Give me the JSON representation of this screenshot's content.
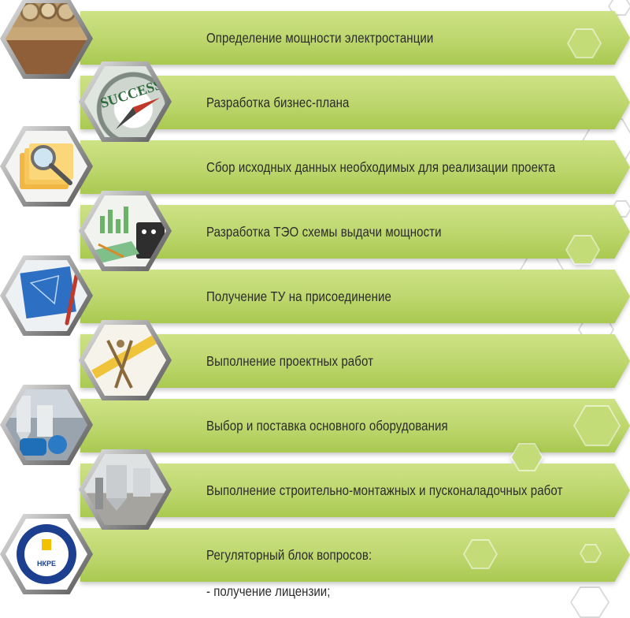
{
  "steps": [
    {
      "label": "Определение мощности электростанции",
      "image": "wood-pellets-image"
    },
    {
      "label": "Разработка бизнес-плана",
      "image": "success-compass-image"
    },
    {
      "label": "Сбор исходных данных необходимых для реализации проекта",
      "image": "folders-magnifier-image"
    },
    {
      "label": "Разработка ТЭО схемы выдачи мощности",
      "image": "charts-calculator-image"
    },
    {
      "label": "Получение ТУ на присоединение",
      "image": "blueprint-pencil-image"
    },
    {
      "label": "Выполнение проектных работ",
      "image": "drafting-tools-image"
    },
    {
      "label": "Выбор и поставка основного оборудования",
      "image": "equipment-image"
    },
    {
      "label": "Выполнение строительно-монтажных и пусконаладочных работ",
      "image": "construction-site-image"
    },
    {
      "label": "Регуляторный блок вопросов:",
      "image": "nkre-emblem-image"
    }
  ],
  "sub_items": [
    "- получение лицензии;"
  ],
  "emblem_text": "НКРЕ",
  "colors": {
    "bar_light": "#cde285",
    "bar_dark": "#a9c950",
    "text": "#2b2b2b"
  }
}
